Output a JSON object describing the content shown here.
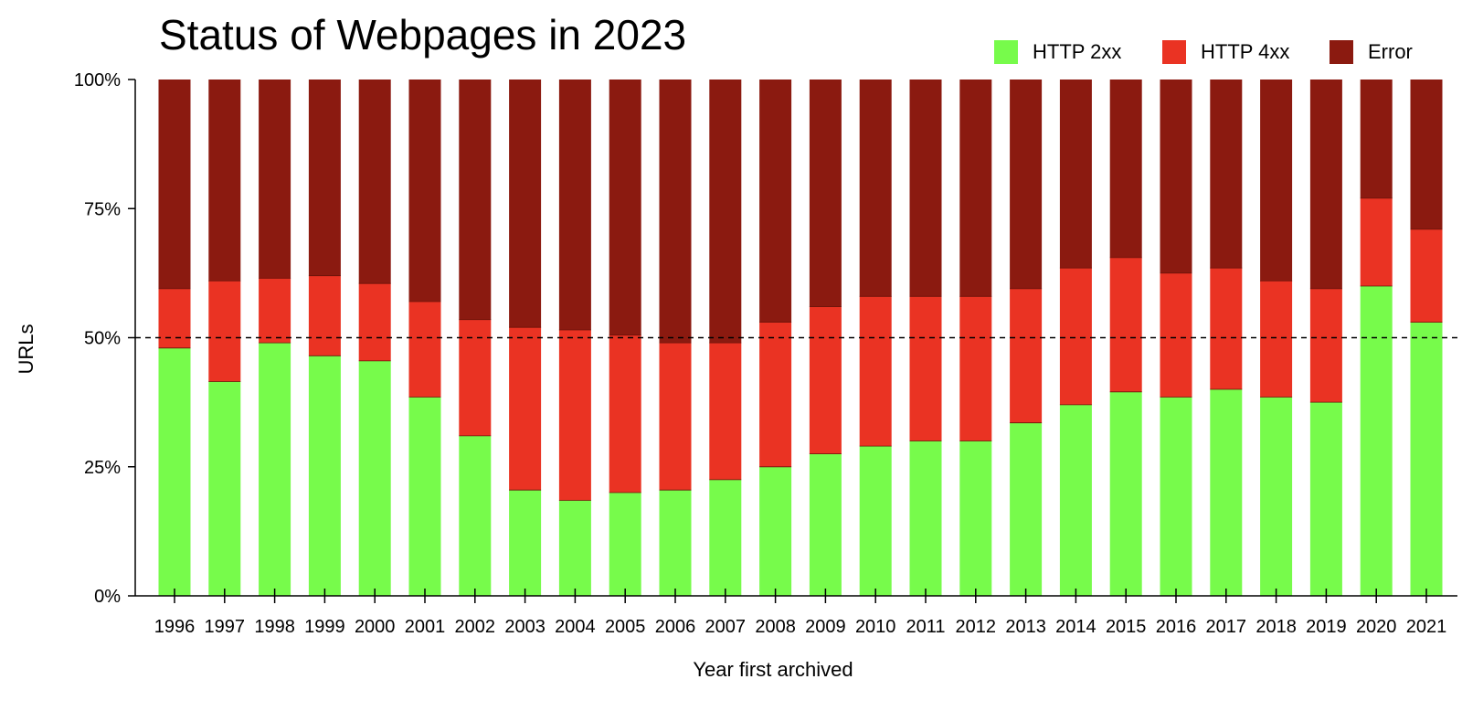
{
  "chart_data": {
    "type": "bar",
    "stacked": true,
    "title": "Status of Webpages in 2023",
    "xlabel": "Year first archived",
    "ylabel": "URLs",
    "ylim": [
      0,
      100
    ],
    "y_ticks": [
      "0%",
      "25%",
      "50%",
      "75%",
      "100%"
    ],
    "y_tick_values": [
      0,
      25,
      50,
      75,
      100
    ],
    "reference_line": {
      "value": 50,
      "style": "dashed"
    },
    "legend_position": "top-right",
    "grid": false,
    "categories": [
      "1996",
      "1997",
      "1998",
      "1999",
      "2000",
      "2001",
      "2002",
      "2003",
      "2004",
      "2005",
      "2006",
      "2007",
      "2008",
      "2009",
      "2010",
      "2011",
      "2012",
      "2013",
      "2014",
      "2015",
      "2016",
      "2017",
      "2018",
      "2019",
      "2020",
      "2021"
    ],
    "series": [
      {
        "name": "HTTP 2xx",
        "color": "#77fb4b",
        "values": [
          48,
          41.5,
          49,
          46.5,
          45.5,
          38.5,
          31,
          20.5,
          18.5,
          20,
          20.5,
          22.5,
          25,
          27.5,
          29,
          30,
          30,
          33.5,
          37,
          39.5,
          38.5,
          40,
          38.5,
          37.5,
          60,
          53
        ]
      },
      {
        "name": "HTTP 4xx",
        "color": "#ea3323",
        "values": [
          11.5,
          19.5,
          12.5,
          15.5,
          15,
          18.5,
          22.5,
          31.5,
          33,
          30.5,
          28.5,
          26.5,
          28,
          28.5,
          29,
          28,
          28,
          26,
          26.5,
          26,
          24,
          23.5,
          22.5,
          22,
          17,
          18
        ]
      },
      {
        "name": "Error",
        "color": "#8b1a10",
        "values": [
          40.5,
          39,
          38.5,
          38,
          39.5,
          43,
          46.5,
          48,
          48.5,
          49.5,
          51,
          51,
          47,
          44,
          42,
          42,
          42,
          40.5,
          36.5,
          34.5,
          37.5,
          36.5,
          39,
          40.5,
          23,
          29
        ]
      }
    ]
  }
}
